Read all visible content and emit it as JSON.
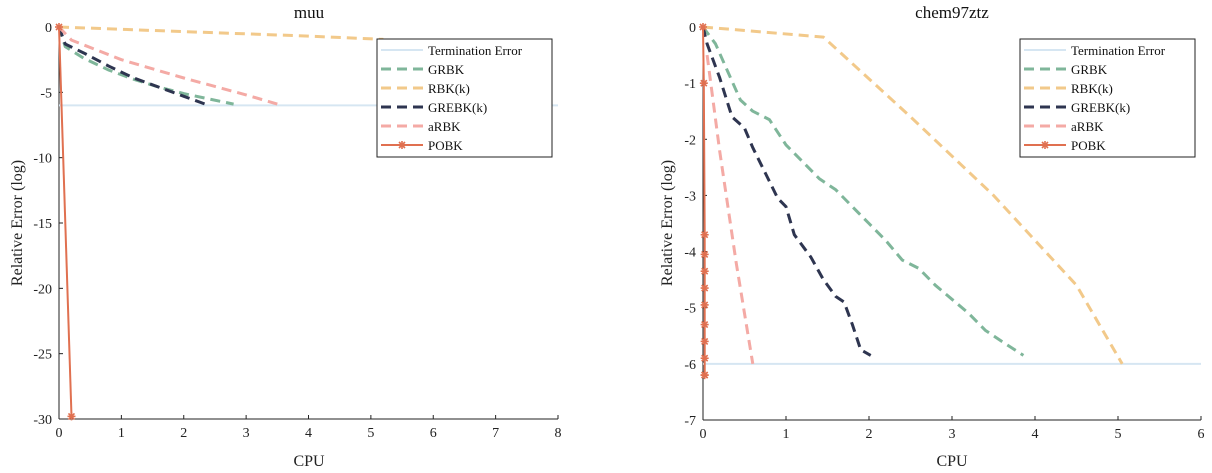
{
  "chart_data": [
    {
      "type": "line",
      "title": "muu",
      "xlabel": "CPU",
      "ylabel": "Relative  Error  (log)",
      "xlim": [
        0,
        8
      ],
      "ylim": [
        -30,
        0
      ],
      "xticks": [
        "0",
        "1",
        "2",
        "3",
        "4",
        "5",
        "6",
        "7",
        "8"
      ],
      "yticks": [
        "0",
        "-5",
        "-10",
        "-15",
        "-20",
        "-25",
        "-30"
      ],
      "legend_position": "top-right",
      "series": [
        {
          "name": "Termination Error",
          "color": "#d6e6f2",
          "style": "solid",
          "x": [
            0,
            8
          ],
          "y": [
            -6,
            -6
          ]
        },
        {
          "name": "GRBK",
          "color": "#7fb69a",
          "style": "dashed",
          "x": [
            0,
            0.1,
            0.4,
            0.8,
            1.2,
            1.6,
            2.0,
            2.4,
            2.8
          ],
          "y": [
            0,
            -1.5,
            -2.4,
            -3.3,
            -4.0,
            -4.6,
            -5.1,
            -5.5,
            -5.9
          ]
        },
        {
          "name": "RBK(k)",
          "color": "#f2c98a",
          "style": "dashed",
          "x": [
            0,
            2,
            4,
            5.2
          ],
          "y": [
            0,
            -0.35,
            -0.7,
            -0.95
          ]
        },
        {
          "name": "GREBK(k)",
          "color": "#2e3550",
          "style": "dashed",
          "x": [
            0,
            0.1,
            0.4,
            0.8,
            1.2,
            1.6,
            2.0,
            2.4
          ],
          "y": [
            0,
            -1.3,
            -2.0,
            -3.0,
            -3.9,
            -4.6,
            -5.3,
            -6.0
          ]
        },
        {
          "name": "aRBK",
          "color": "#f4aaa5",
          "style": "dashed",
          "x": [
            0,
            0.2,
            1.0,
            2.0,
            3.0,
            3.5
          ],
          "y": [
            0,
            -1.0,
            -2.5,
            -3.9,
            -5.2,
            -5.9
          ]
        },
        {
          "name": "POBK",
          "color": "#e07050",
          "style": "solid",
          "marker": "asterisk",
          "x": [
            0,
            0.2
          ],
          "y": [
            0,
            -29.8
          ]
        }
      ]
    },
    {
      "type": "line",
      "title": "chem97ztz",
      "xlabel": "CPU",
      "ylabel": "Relative  Error  (log)",
      "xlim": [
        0,
        6
      ],
      "ylim": [
        -7,
        0
      ],
      "xticks": [
        "0",
        "1",
        "2",
        "3",
        "4",
        "5",
        "6"
      ],
      "yticks": [
        "0",
        "-1",
        "-2",
        "-3",
        "-4",
        "-5",
        "-6",
        "-7"
      ],
      "legend_position": "top-right",
      "series": [
        {
          "name": "Termination Error",
          "color": "#d6e6f2",
          "style": "solid",
          "x": [
            0,
            6
          ],
          "y": [
            -6,
            -6
          ]
        },
        {
          "name": "GRBK",
          "color": "#7fb69a",
          "style": "dashed",
          "x": [
            0,
            0.15,
            0.3,
            0.45,
            0.6,
            0.8,
            1.0,
            1.2,
            1.4,
            1.6,
            1.8,
            2.0,
            2.2,
            2.4,
            2.6,
            2.8,
            3.0,
            3.2,
            3.4,
            3.6,
            3.86
          ],
          "y": [
            0,
            -0.3,
            -0.8,
            -1.3,
            -1.5,
            -1.65,
            -2.1,
            -2.4,
            -2.7,
            -2.9,
            -3.2,
            -3.5,
            -3.8,
            -4.15,
            -4.3,
            -4.6,
            -4.85,
            -5.1,
            -5.4,
            -5.6,
            -5.85
          ]
        },
        {
          "name": "RBK(k)",
          "color": "#f2c98a",
          "style": "dashed",
          "x": [
            0,
            1.45,
            2.5,
            3.5,
            4.5,
            5.05
          ],
          "y": [
            0,
            -0.18,
            -1.6,
            -3.0,
            -4.6,
            -6.0
          ]
        },
        {
          "name": "GREBK(k)",
          "color": "#2e3550",
          "style": "dashed",
          "x": [
            0,
            0.05,
            0.2,
            0.35,
            0.5,
            0.6,
            0.75,
            0.9,
            1.0,
            1.1,
            1.3,
            1.45,
            1.6,
            1.7,
            1.8,
            1.9,
            2.02
          ],
          "y": [
            0,
            -0.3,
            -0.9,
            -1.6,
            -1.8,
            -2.15,
            -2.6,
            -3.05,
            -3.2,
            -3.7,
            -4.1,
            -4.5,
            -4.8,
            -4.9,
            -5.3,
            -5.75,
            -5.85
          ]
        },
        {
          "name": "aRBK",
          "color": "#f4aaa5",
          "style": "dashed",
          "x": [
            0.05,
            0.2,
            0.4,
            0.6
          ],
          "y": [
            -0.5,
            -2.2,
            -4.2,
            -6.0
          ]
        },
        {
          "name": "POBK",
          "color": "#e07050",
          "style": "solid",
          "marker": "asterisk",
          "x": [
            0,
            0.01,
            0.02,
            0.02,
            0.02,
            0.02,
            0.02,
            0.02,
            0.02,
            0.02,
            0.02,
            0.02
          ],
          "y": [
            0,
            -1.0,
            -3.7,
            -4.05,
            -4.35,
            -4.65,
            -4.95,
            -5.3,
            -5.6,
            -5.9,
            -6.2,
            -6.2
          ]
        }
      ]
    }
  ]
}
